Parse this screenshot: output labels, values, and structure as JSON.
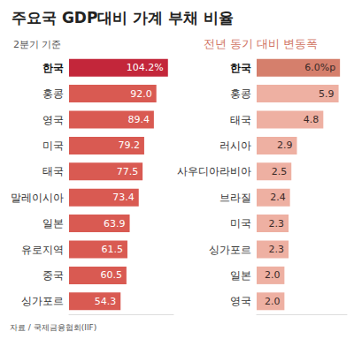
{
  "title": "주요국 GDP대비 가계 부채 비율",
  "source": "자료 / 국제금융협회(IIF)",
  "chart_data": [
    {
      "type": "bar",
      "orientation": "horizontal",
      "subtitle": "2분기 기준",
      "categories": [
        "한국",
        "홍콩",
        "영국",
        "미국",
        "태국",
        "말레이시아",
        "일본",
        "유로지역",
        "중국",
        "싱가포르"
      ],
      "values": [
        104.2,
        92.0,
        89.4,
        79.2,
        77.5,
        73.4,
        63.9,
        61.5,
        60.5,
        54.3
      ],
      "value_labels": [
        "104.2%",
        "92.0",
        "89.4",
        "79.2",
        "77.5",
        "73.4",
        "63.9",
        "61.5",
        "60.5",
        "54.3"
      ],
      "colors": [
        "#c3263a",
        "#d95a52",
        "#d95a52",
        "#d95a52",
        "#d95a52",
        "#d95a52",
        "#d95a52",
        "#d95a52",
        "#d95a52",
        "#d95a52"
      ],
      "xlim": [
        0,
        110
      ],
      "data_labels": true,
      "tick_labels": "y",
      "grid": false
    },
    {
      "type": "bar",
      "orientation": "horizontal",
      "title": "전년 동기 대비 변동폭",
      "categories": [
        "한국",
        "홍콩",
        "태국",
        "러시아",
        "사우디아라비아",
        "브라질",
        "미국",
        "싱가포르",
        "일본",
        "영국"
      ],
      "values": [
        6.0,
        5.9,
        4.8,
        2.9,
        2.5,
        2.4,
        2.3,
        2.3,
        2.0,
        2.0
      ],
      "value_labels": [
        "6.0%p",
        "5.9",
        "4.8",
        "2.9",
        "2.5",
        "2.4",
        "2.3",
        "2.3",
        "2.0",
        "2.0"
      ],
      "colors": [
        "#d57f6c",
        "#eeb0a2",
        "#eeb0a2",
        "#eeb0a2",
        "#eeb0a2",
        "#eeb0a2",
        "#eeb0a2",
        "#eeb0a2",
        "#eeb0a2",
        "#eeb0a2"
      ],
      "xlim": [
        0,
        6.5
      ],
      "data_labels": true,
      "tick_labels": "y",
      "grid": false
    }
  ]
}
